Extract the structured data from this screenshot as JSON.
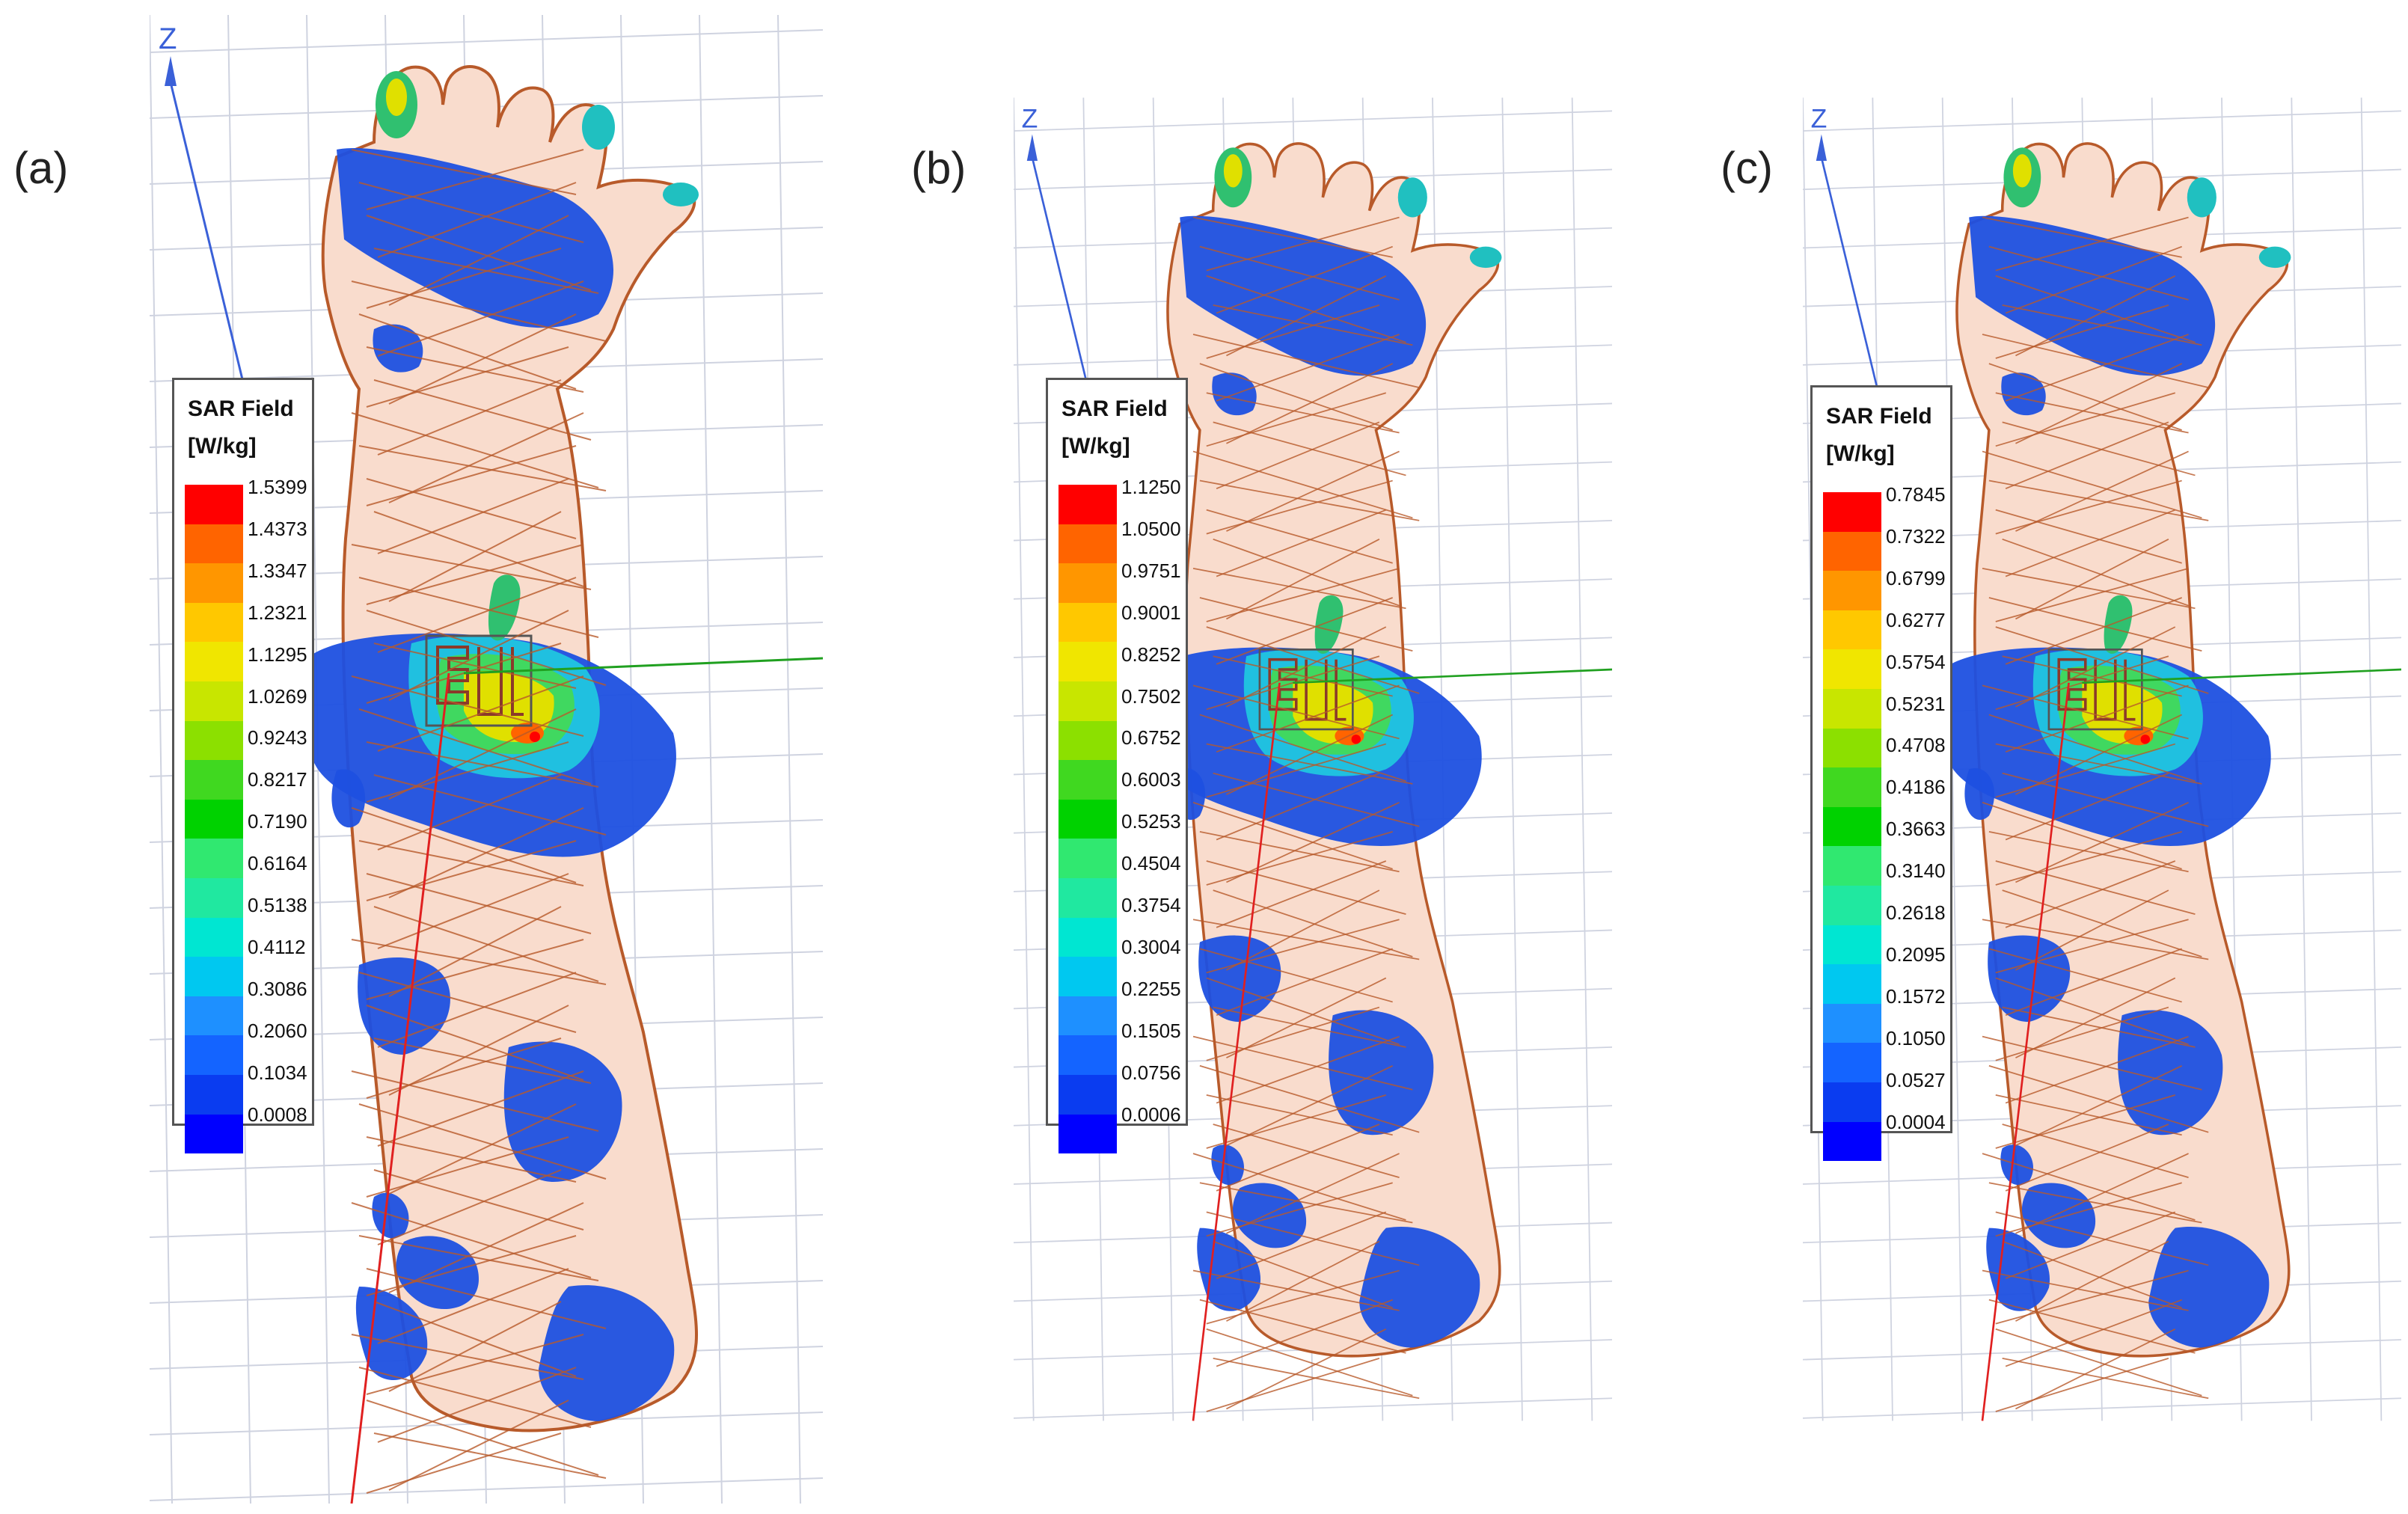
{
  "colorscale": [
    "#0000ff",
    "#0a3cf0",
    "#1464ff",
    "#1e90ff",
    "#00c8f0",
    "#00e6d2",
    "#20e8a0",
    "#30e870",
    "#00d200",
    "#40d820",
    "#8ce000",
    "#c8e600",
    "#f0e600",
    "#ffc800",
    "#ff9600",
    "#ff6400",
    "#ff0000"
  ],
  "panels": [
    {
      "label": "(a)",
      "axis_label": "Z",
      "legend": {
        "title": "SAR Field",
        "unit": "[W/kg]",
        "ticks": [
          "1.5399",
          "1.4373",
          "1.3347",
          "1.2321",
          "1.1295",
          "1.0269",
          "0.9243",
          "0.8217",
          "0.7190",
          "0.6164",
          "0.5138",
          "0.4112",
          "0.3086",
          "0.2060",
          "0.1034",
          "0.0008"
        ]
      }
    },
    {
      "label": "(b)",
      "axis_label": "Z",
      "legend": {
        "title": "SAR Field",
        "unit": "[W/kg]",
        "ticks": [
          "1.1250",
          "1.0500",
          "0.9751",
          "0.9001",
          "0.8252",
          "0.7502",
          "0.6752",
          "0.6003",
          "0.5253",
          "0.4504",
          "0.3754",
          "0.3004",
          "0.2255",
          "0.1505",
          "0.0756",
          "0.0006"
        ]
      }
    },
    {
      "label": "(c)",
      "axis_label": "Z",
      "legend": {
        "title": "SAR Field",
        "unit": "[W/kg]",
        "ticks": [
          "0.7845",
          "0.7322",
          "0.6799",
          "0.6277",
          "0.5754",
          "0.5231",
          "0.4708",
          "0.4186",
          "0.3663",
          "0.3140",
          "0.2618",
          "0.2095",
          "0.1572",
          "0.1050",
          "0.0527",
          "0.0004"
        ]
      }
    }
  ]
}
